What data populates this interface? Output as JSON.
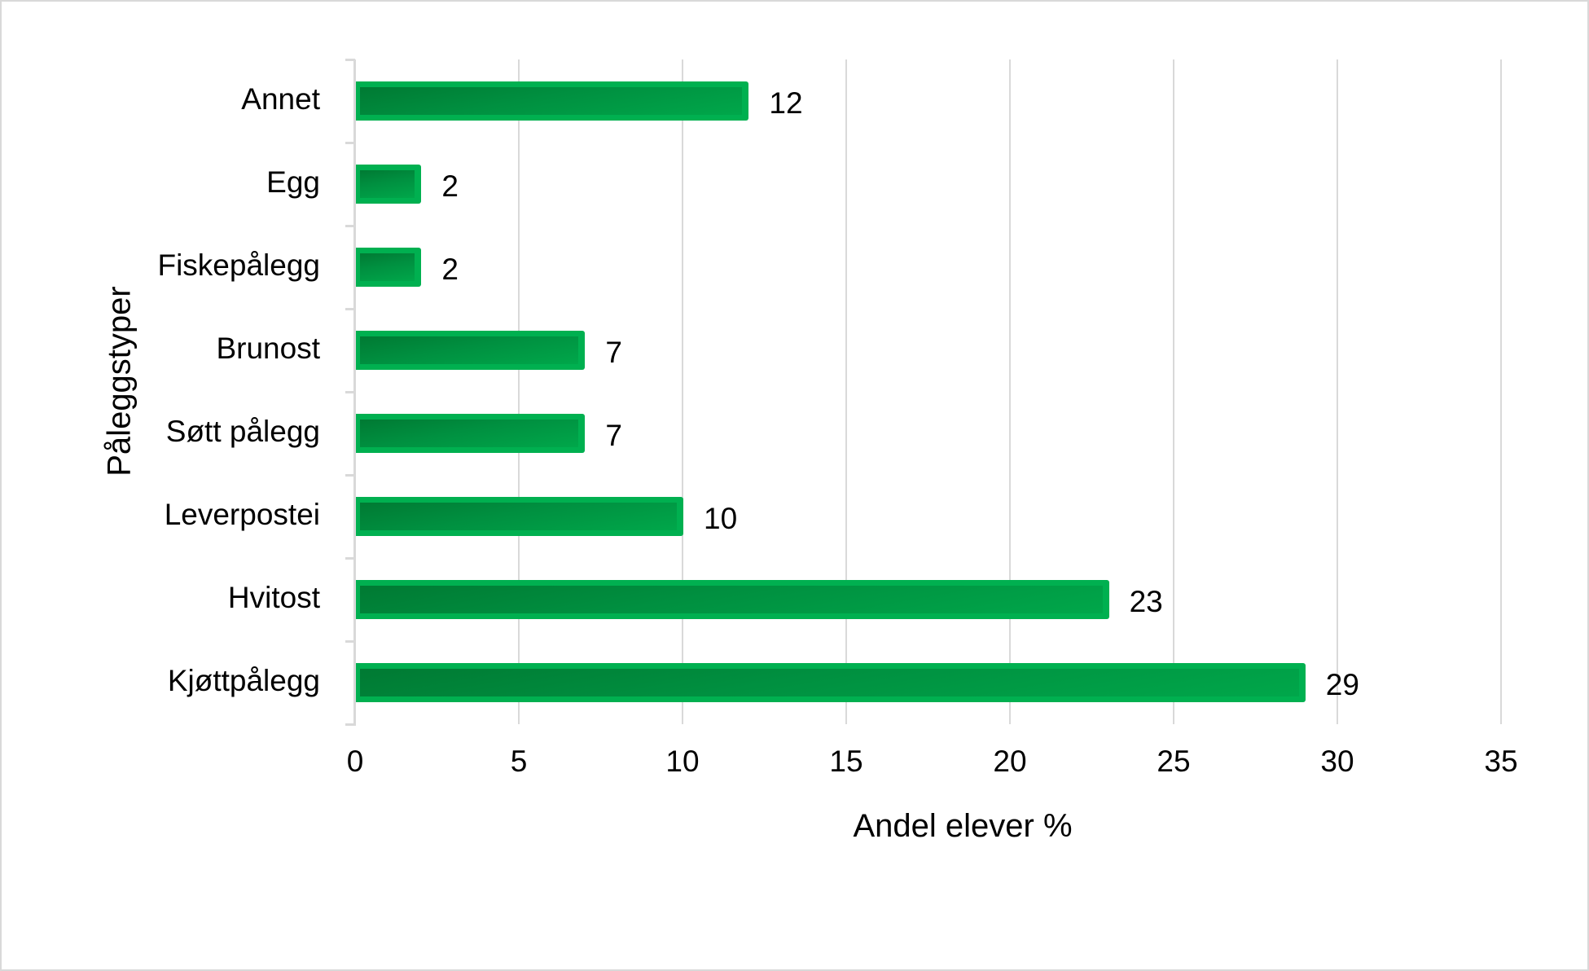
{
  "chart_data": {
    "type": "bar",
    "orientation": "horizontal",
    "title": "",
    "xlabel": "Andel elever %",
    "ylabel": "Påleggstyper",
    "xlim": [
      0,
      35
    ],
    "xticks": [
      "0",
      "5",
      "10",
      "15",
      "20",
      "25",
      "30",
      "35"
    ],
    "grid": "vertical",
    "legend": null,
    "categories": [
      "Annet",
      "Egg",
      "Fiskepålegg",
      "Brunost",
      "Søtt pålegg",
      "Leverpostei",
      "Hvitost",
      "Kjøttpålegg"
    ],
    "values": [
      12,
      2,
      2,
      7,
      7,
      10,
      23,
      29
    ],
    "value_labels": [
      "12",
      "2",
      "2",
      "7",
      "7",
      "10",
      "23",
      "29"
    ],
    "bar_color": "#00B050",
    "bar_inner_color": "#007A33"
  }
}
